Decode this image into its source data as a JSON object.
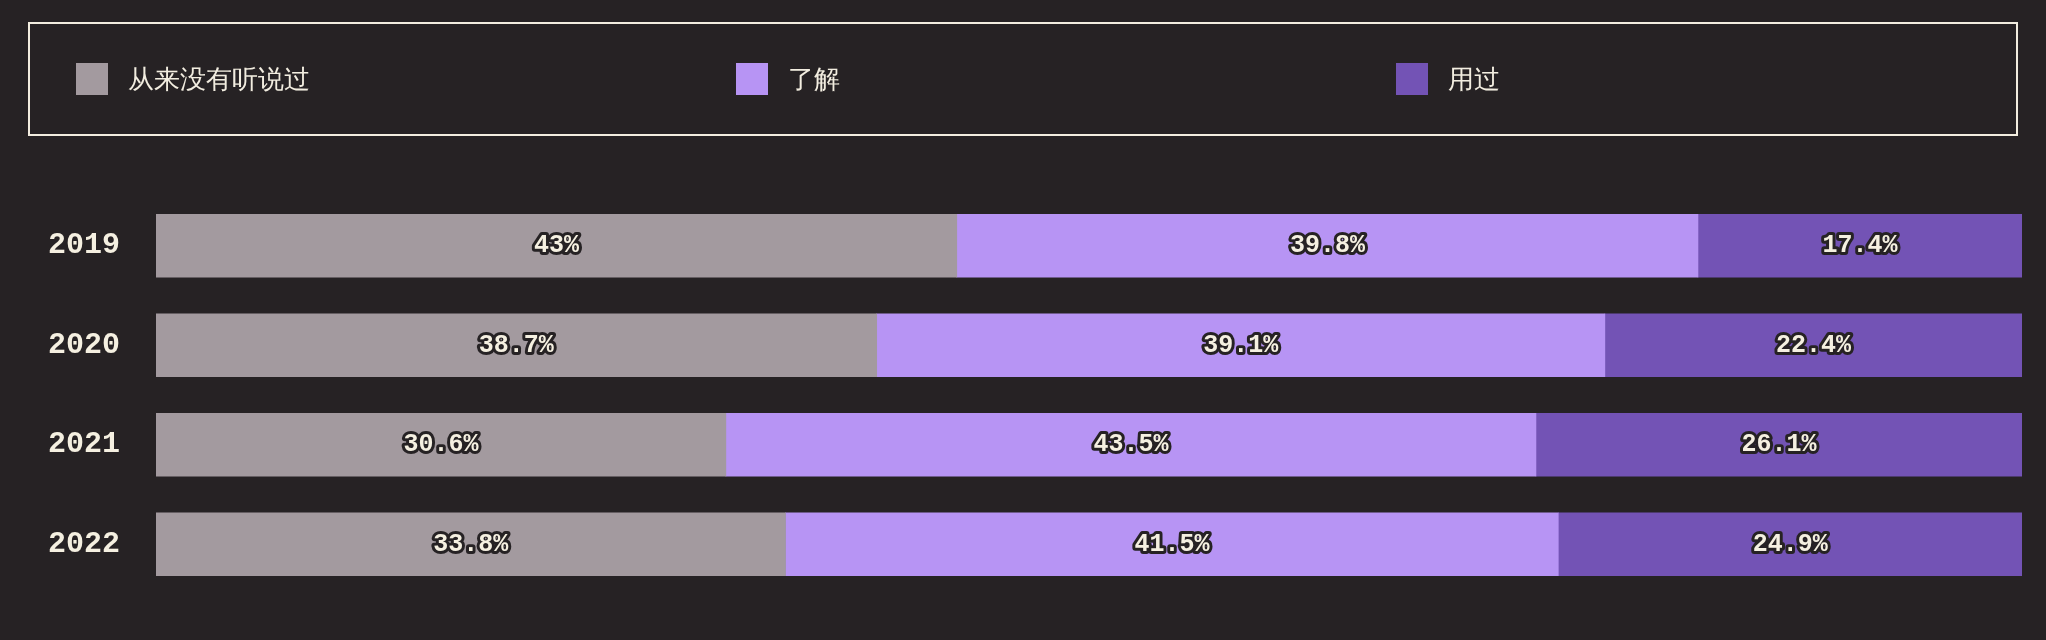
{
  "chart_data": {
    "type": "bar",
    "orientation": "horizontal",
    "stacked": true,
    "legend": "top",
    "tick_labels": "y",
    "categories": [
      "2019",
      "2020",
      "2021",
      "2022"
    ],
    "series": [
      {
        "name": "从来没有听说过",
        "color": "#a39a9f",
        "values": [
          43,
          38.7,
          30.6,
          33.8
        ],
        "value_labels": [
          "43%",
          "38.7%",
          "30.6%",
          "33.8%"
        ]
      },
      {
        "name": "了解",
        "color": "#b794f4",
        "values": [
          39.8,
          39.1,
          43.5,
          41.5
        ],
        "value_labels": [
          "39.8%",
          "39.1%",
          "43.5%",
          "41.5%"
        ]
      },
      {
        "name": "用过",
        "color": "#7353b5",
        "values": [
          17.4,
          22.4,
          26.1,
          24.9
        ],
        "value_labels": [
          "17.4%",
          "22.4%",
          "26.1%",
          "24.9%"
        ]
      }
    ]
  }
}
